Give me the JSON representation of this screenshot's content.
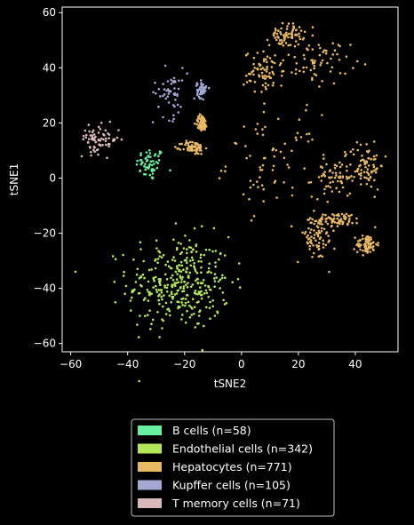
{
  "chart_data": {
    "type": "scatter",
    "title": "",
    "xlabel": "tSNE2",
    "ylabel": "tSNE1",
    "xlim": [
      -63,
      55
    ],
    "ylim": [
      -63,
      62
    ],
    "xticks": [
      -60,
      -40,
      -20,
      0,
      20,
      40
    ],
    "yticks": [
      -60,
      -40,
      -20,
      0,
      20,
      40,
      60
    ],
    "grid": false,
    "legend_position": "below",
    "series": [
      {
        "name": "B cells (n=58)",
        "color": "#66f0a0",
        "n": 58,
        "clusters": [
          {
            "center": [
              -32,
              5
            ],
            "spread": [
              2.5,
              3.0
            ]
          }
        ]
      },
      {
        "name": "Endothelial cells (n=342)",
        "color": "#b4e85a",
        "n": 342,
        "clusters": [
          {
            "center": [
              -22,
              -38
            ],
            "spread": [
              9.0,
              8.5
            ]
          }
        ]
      },
      {
        "name": "Hepatocytes (n=771)",
        "color": "#e8b964",
        "n": 771,
        "clusters": [
          {
            "center": [
              11,
              6
            ],
            "spread": [
              8.0,
              8.5
            ]
          },
          {
            "center": [
              8,
              38
            ],
            "spread": [
              3.5,
              4.0
            ]
          },
          {
            "center": [
              16,
              52
            ],
            "spread": [
              3.0,
              2.0
            ]
          },
          {
            "center": [
              26,
              42
            ],
            "spread": [
              6.0,
              4.0
            ]
          },
          {
            "center": [
              26,
              -22
            ],
            "spread": [
              3.5,
              4.0
            ]
          },
          {
            "center": [
              33,
              0
            ],
            "spread": [
              4.0,
              3.5
            ]
          },
          {
            "center": [
              44,
              5
            ],
            "spread": [
              3.0,
              4.5
            ]
          },
          {
            "center": [
              44,
              -24
            ],
            "spread": [
              1.8,
              1.8
            ]
          },
          {
            "center": [
              -17,
              11
            ],
            "spread": [
              2.0,
              1.2
            ]
          },
          {
            "center": [
              -14,
              20
            ],
            "spread": [
              1.0,
              1.5
            ]
          },
          {
            "center": [
              34,
              -15
            ],
            "spread": [
              4.0,
              1.2
            ]
          }
        ]
      },
      {
        "name": "Kupffer cells (n=105)",
        "color": "#a3a8d2",
        "n": 105,
        "clusters": [
          {
            "center": [
              -25,
              31
            ],
            "spread": [
              3.0,
              4.5
            ]
          },
          {
            "center": [
              -14,
              32
            ],
            "spread": [
              0.8,
              1.5
            ]
          }
        ]
      },
      {
        "name": "T memory cells (n=71)",
        "color": "#d8b8b8",
        "n": 71,
        "clusters": [
          {
            "center": [
              -50,
              14
            ],
            "spread": [
              3.5,
              2.5
            ]
          }
        ]
      }
    ]
  }
}
